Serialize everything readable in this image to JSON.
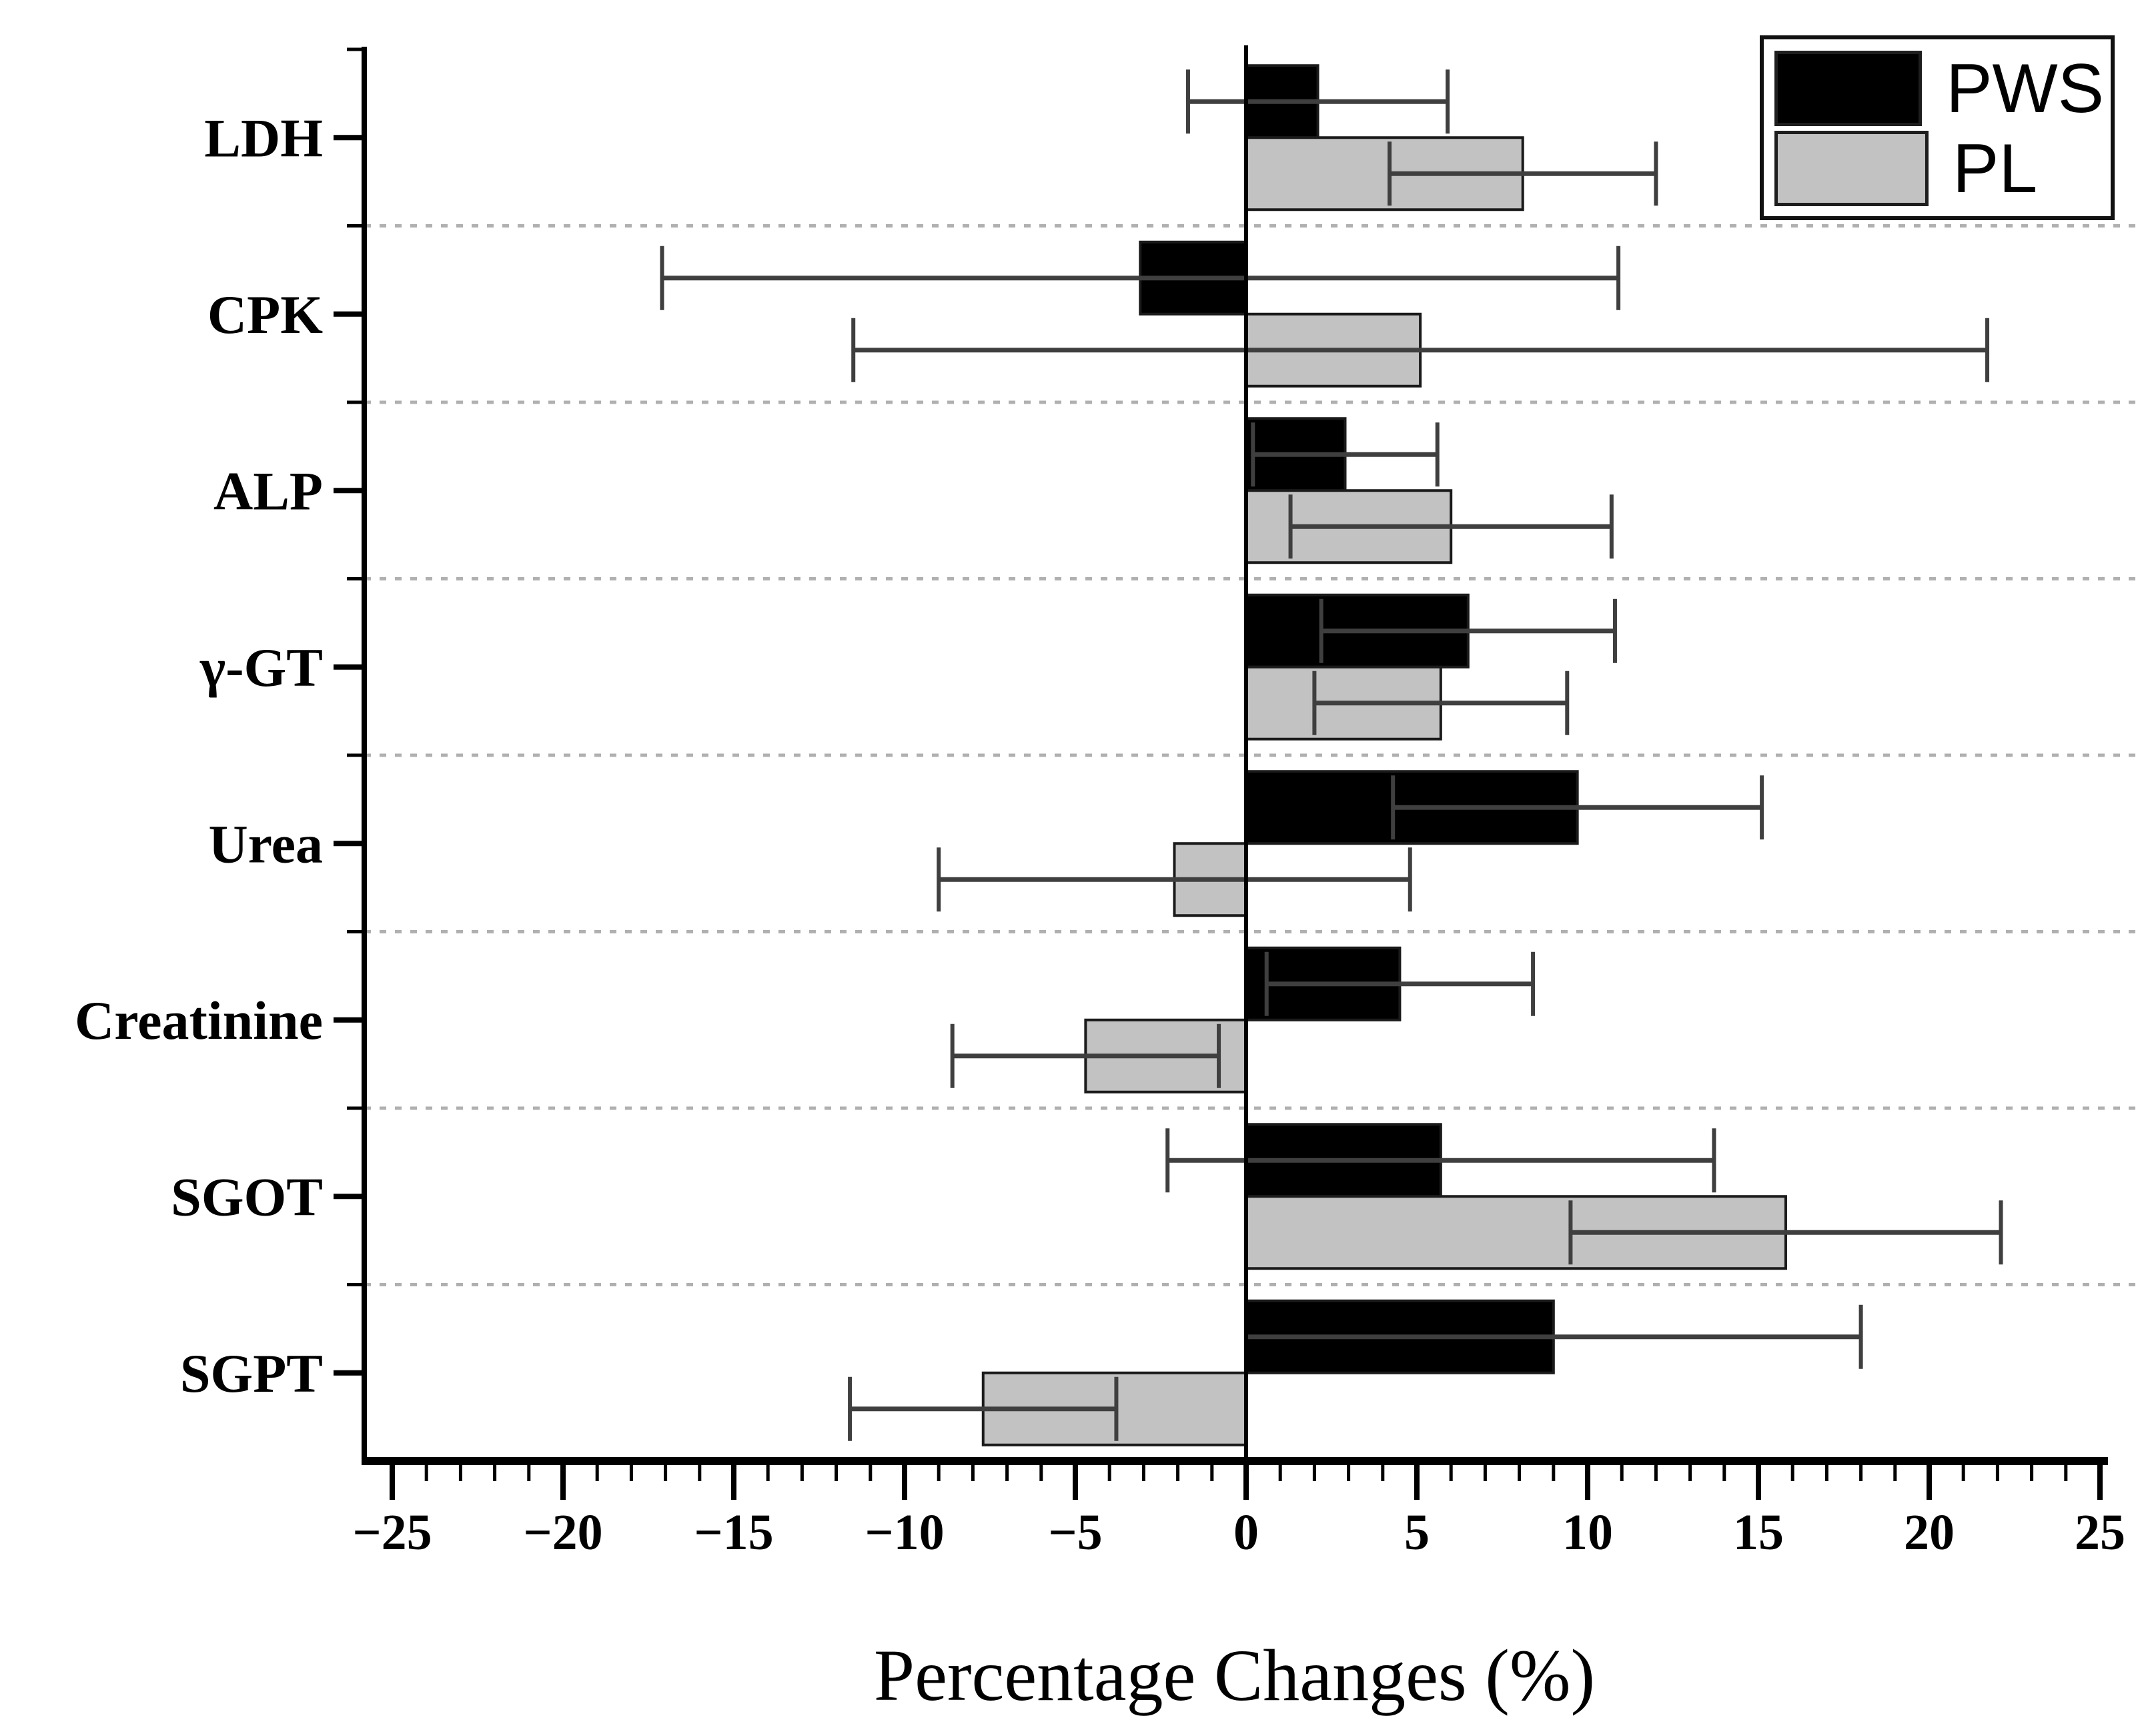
{
  "figure": {
    "background": "#ffffff",
    "axis_color": "#000000",
    "text_color": "#000000"
  },
  "chart_data": {
    "type": "bar",
    "orientation": "horizontal",
    "title": "",
    "xlabel": "Percentage Changes (%)",
    "ylabel": "",
    "xlim": [
      -25,
      25
    ],
    "x_major_tick_step": 5,
    "x_minor_tick_step": 1,
    "x_tick_labels": [
      "-25",
      "-20",
      "-15",
      "-10",
      "-5",
      "0",
      "5",
      "10",
      "15",
      "20",
      "25"
    ],
    "grid": "dashed light-gray horizontal separators between category groups",
    "legend_position": "top-right",
    "categories": [
      "LDH",
      "CPK",
      "ALP",
      "γ-GT",
      "Urea",
      "Creatinine",
      "SGOT",
      "SGPT"
    ],
    "series": [
      {
        "name": "PWS",
        "color": "#000000",
        "values": [
          2.1,
          -3.1,
          2.9,
          6.5,
          9.7,
          4.5,
          5.7,
          9.0
        ],
        "errors": [
          3.8,
          14.0,
          2.7,
          4.3,
          5.4,
          3.9,
          8.0,
          9.0
        ]
      },
      {
        "name": "PL",
        "color": "#c2c2c2",
        "values": [
          8.1,
          5.1,
          6.0,
          5.7,
          -2.1,
          -4.7,
          15.8,
          -7.7
        ],
        "errors": [
          3.9,
          16.6,
          4.7,
          3.7,
          6.9,
          3.9,
          6.3,
          3.9
        ]
      }
    ],
    "bar_outline_color": "#1a1a1a",
    "error_bar_color": "#3f3f3f",
    "separator_color": "#b0b0b0"
  },
  "legend": {
    "items": [
      {
        "label": "PWS",
        "color": "#000000"
      },
      {
        "label": "PL",
        "color": "#c2c2c2"
      }
    ]
  }
}
